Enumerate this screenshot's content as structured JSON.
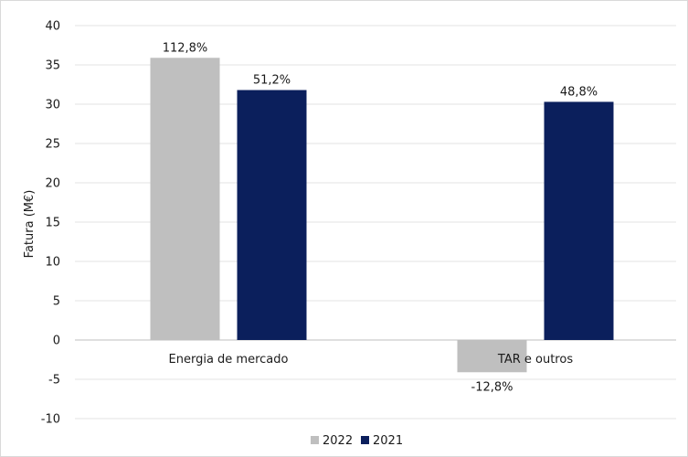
{
  "chart_data": {
    "type": "bar",
    "title": "",
    "xlabel": "",
    "ylabel": "Fatura (M€)",
    "ylim": [
      -10,
      40
    ],
    "yticks": [
      40,
      35,
      30,
      25,
      20,
      15,
      10,
      5,
      0,
      -5,
      -10
    ],
    "ytick_labels": [
      "40",
      "35",
      "30",
      "25",
      "20",
      "15",
      "10",
      "5",
      "0",
      "-5",
      "-10"
    ],
    "grid": true,
    "legend": "bottom",
    "categories": [
      "Energia de mercado",
      "TAR e outros"
    ],
    "series": [
      {
        "name": "2022",
        "color": "#bfbfbf",
        "values": [
          35.9,
          -4.1
        ],
        "labels": [
          "112,8%",
          "-12,8%"
        ]
      },
      {
        "name": "2021",
        "color": "#0b1f5c",
        "values": [
          31.8,
          30.3
        ],
        "labels": [
          "51,2%",
          "48,8%"
        ]
      }
    ]
  }
}
